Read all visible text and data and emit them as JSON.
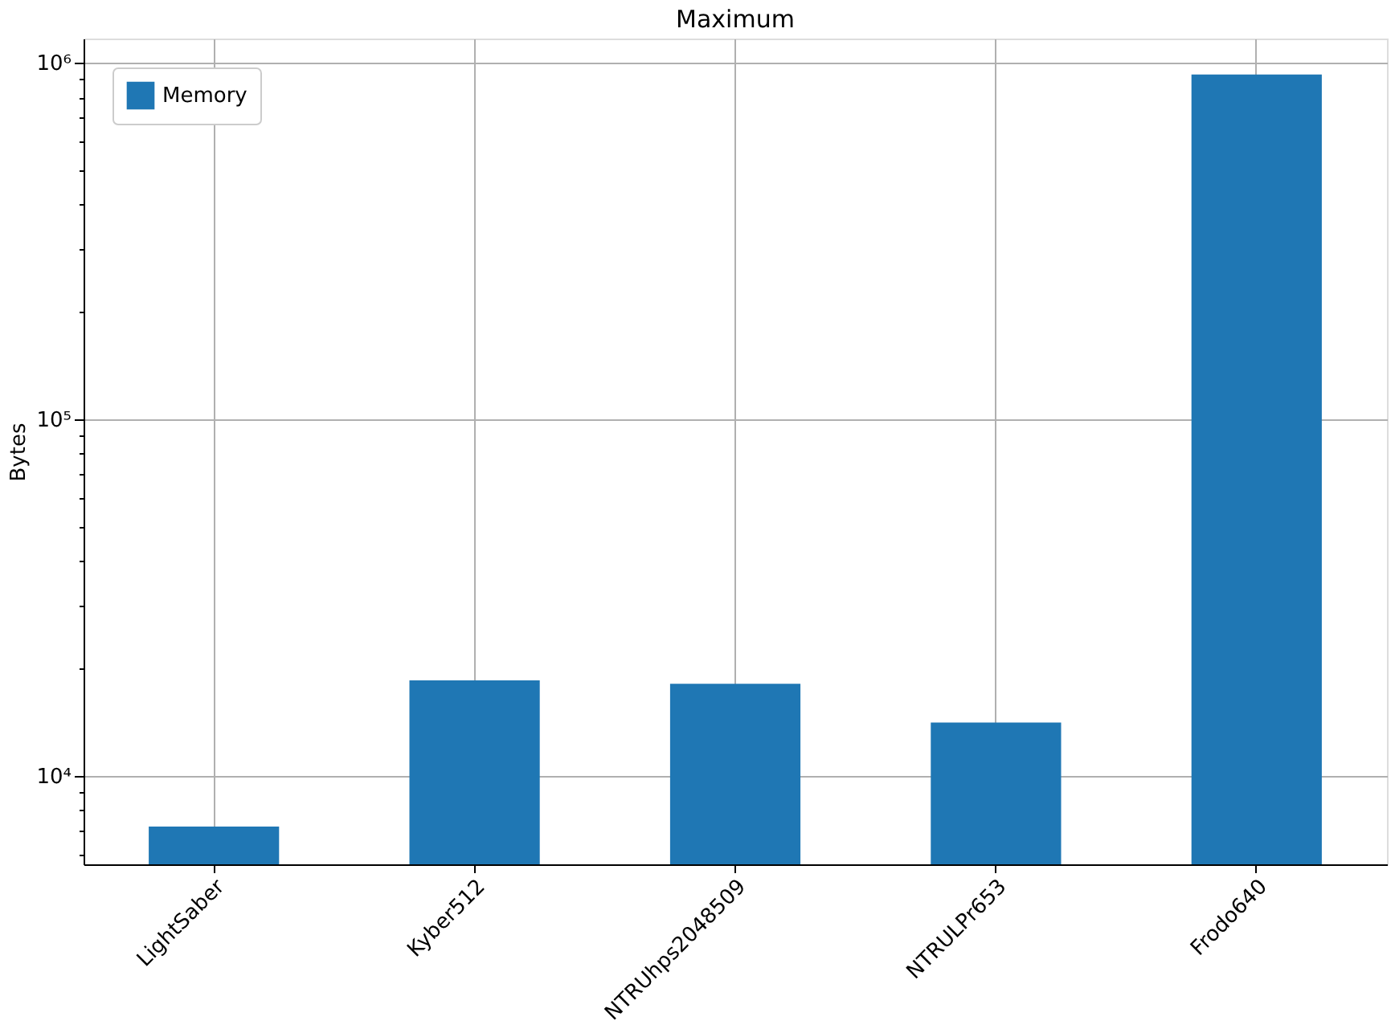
{
  "chart_data": {
    "type": "bar",
    "title": "Maximum",
    "ylabel": "Bytes",
    "categories": [
      "LightSaber",
      "Kyber512",
      "NTRUhps2048509",
      "NTRULPr653",
      "Frodo640"
    ],
    "series": [
      {
        "name": "Memory",
        "color": "#1f77b4",
        "values": [
          7200,
          18500,
          18100,
          14100,
          927000
        ]
      }
    ],
    "log": true,
    "ylim": [
      5640,
      1170000
    ],
    "yticks": [
      {
        "value": 6000,
        "label": null
      },
      {
        "value": 7000,
        "label": null
      },
      {
        "value": 8000,
        "label": null
      },
      {
        "value": 9000,
        "label": null
      },
      {
        "value": 10000,
        "label": "10⁴"
      },
      {
        "value": 20000,
        "label": null
      },
      {
        "value": 30000,
        "label": null
      },
      {
        "value": 40000,
        "label": null
      },
      {
        "value": 50000,
        "label": null
      },
      {
        "value": 60000,
        "label": null
      },
      {
        "value": 70000,
        "label": null
      },
      {
        "value": 80000,
        "label": null
      },
      {
        "value": 90000,
        "label": null
      },
      {
        "value": 100000,
        "label": "10⁵"
      },
      {
        "value": 200000,
        "label": null
      },
      {
        "value": 300000,
        "label": null
      },
      {
        "value": 400000,
        "label": null
      },
      {
        "value": 500000,
        "label": null
      },
      {
        "value": 600000,
        "label": null
      },
      {
        "value": 700000,
        "label": null
      },
      {
        "value": 800000,
        "label": null
      },
      {
        "value": 900000,
        "label": null
      },
      {
        "value": 1000000,
        "label": "10⁶"
      }
    ],
    "grid": true,
    "legend": "top left"
  }
}
